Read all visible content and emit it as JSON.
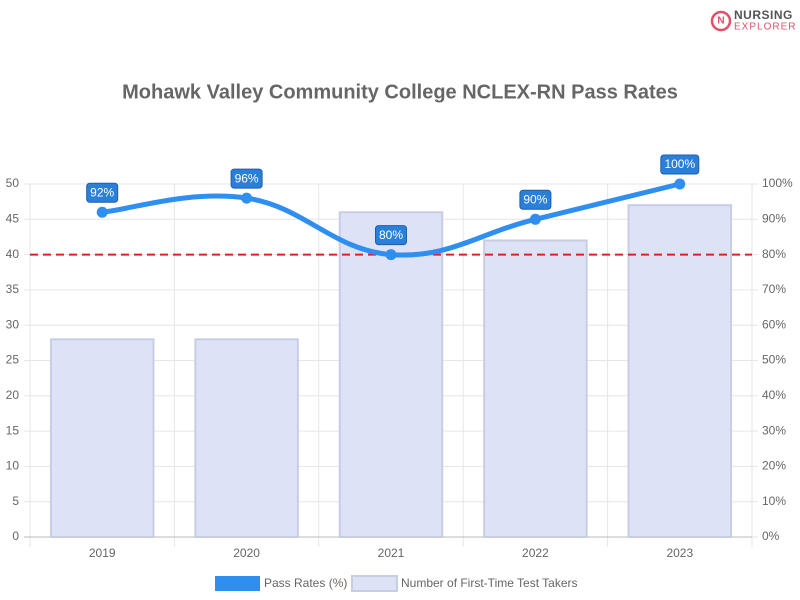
{
  "logo": {
    "line1": "NURSING",
    "line2": "EXPLORER"
  },
  "chart_data": {
    "type": "combo",
    "title": "Mohawk Valley Community College NCLEX-RN Pass Rates",
    "categories": [
      "2019",
      "2020",
      "2021",
      "2022",
      "2023"
    ],
    "series": [
      {
        "name": "Pass Rates (%)",
        "type": "line",
        "axis": "y2",
        "color": "#2f8ff0",
        "values": [
          92,
          96,
          80,
          90,
          100
        ],
        "value_labels": [
          "92%",
          "96%",
          "80%",
          "90%",
          "100%"
        ]
      },
      {
        "name": "Number of First-Time Test Takers",
        "type": "bar",
        "color": "#dde2f7",
        "border": "#c8cde3",
        "values": [
          28,
          28,
          46,
          42,
          47
        ]
      }
    ],
    "ylim": [
      0,
      50
    ],
    "yticks": [
      0,
      5,
      10,
      15,
      20,
      25,
      30,
      35,
      40,
      45,
      50
    ],
    "y2lim": [
      0,
      100
    ],
    "y2ticks": [
      {
        "value": 0,
        "label": "0%"
      },
      {
        "value": 10,
        "label": "10%"
      },
      {
        "value": 20,
        "label": "20%"
      },
      {
        "value": 30,
        "label": "30%"
      },
      {
        "value": 40,
        "label": "40%"
      },
      {
        "value": 50,
        "label": "50%"
      },
      {
        "value": 60,
        "label": "60%"
      },
      {
        "value": 70,
        "label": "70%"
      },
      {
        "value": 80,
        "label": "80%"
      },
      {
        "value": 90,
        "label": "90%"
      },
      {
        "value": 100,
        "label": "100%"
      }
    ],
    "reference_line": {
      "value": 80,
      "axis": "y2",
      "color": "#e02020"
    },
    "grid": true
  }
}
